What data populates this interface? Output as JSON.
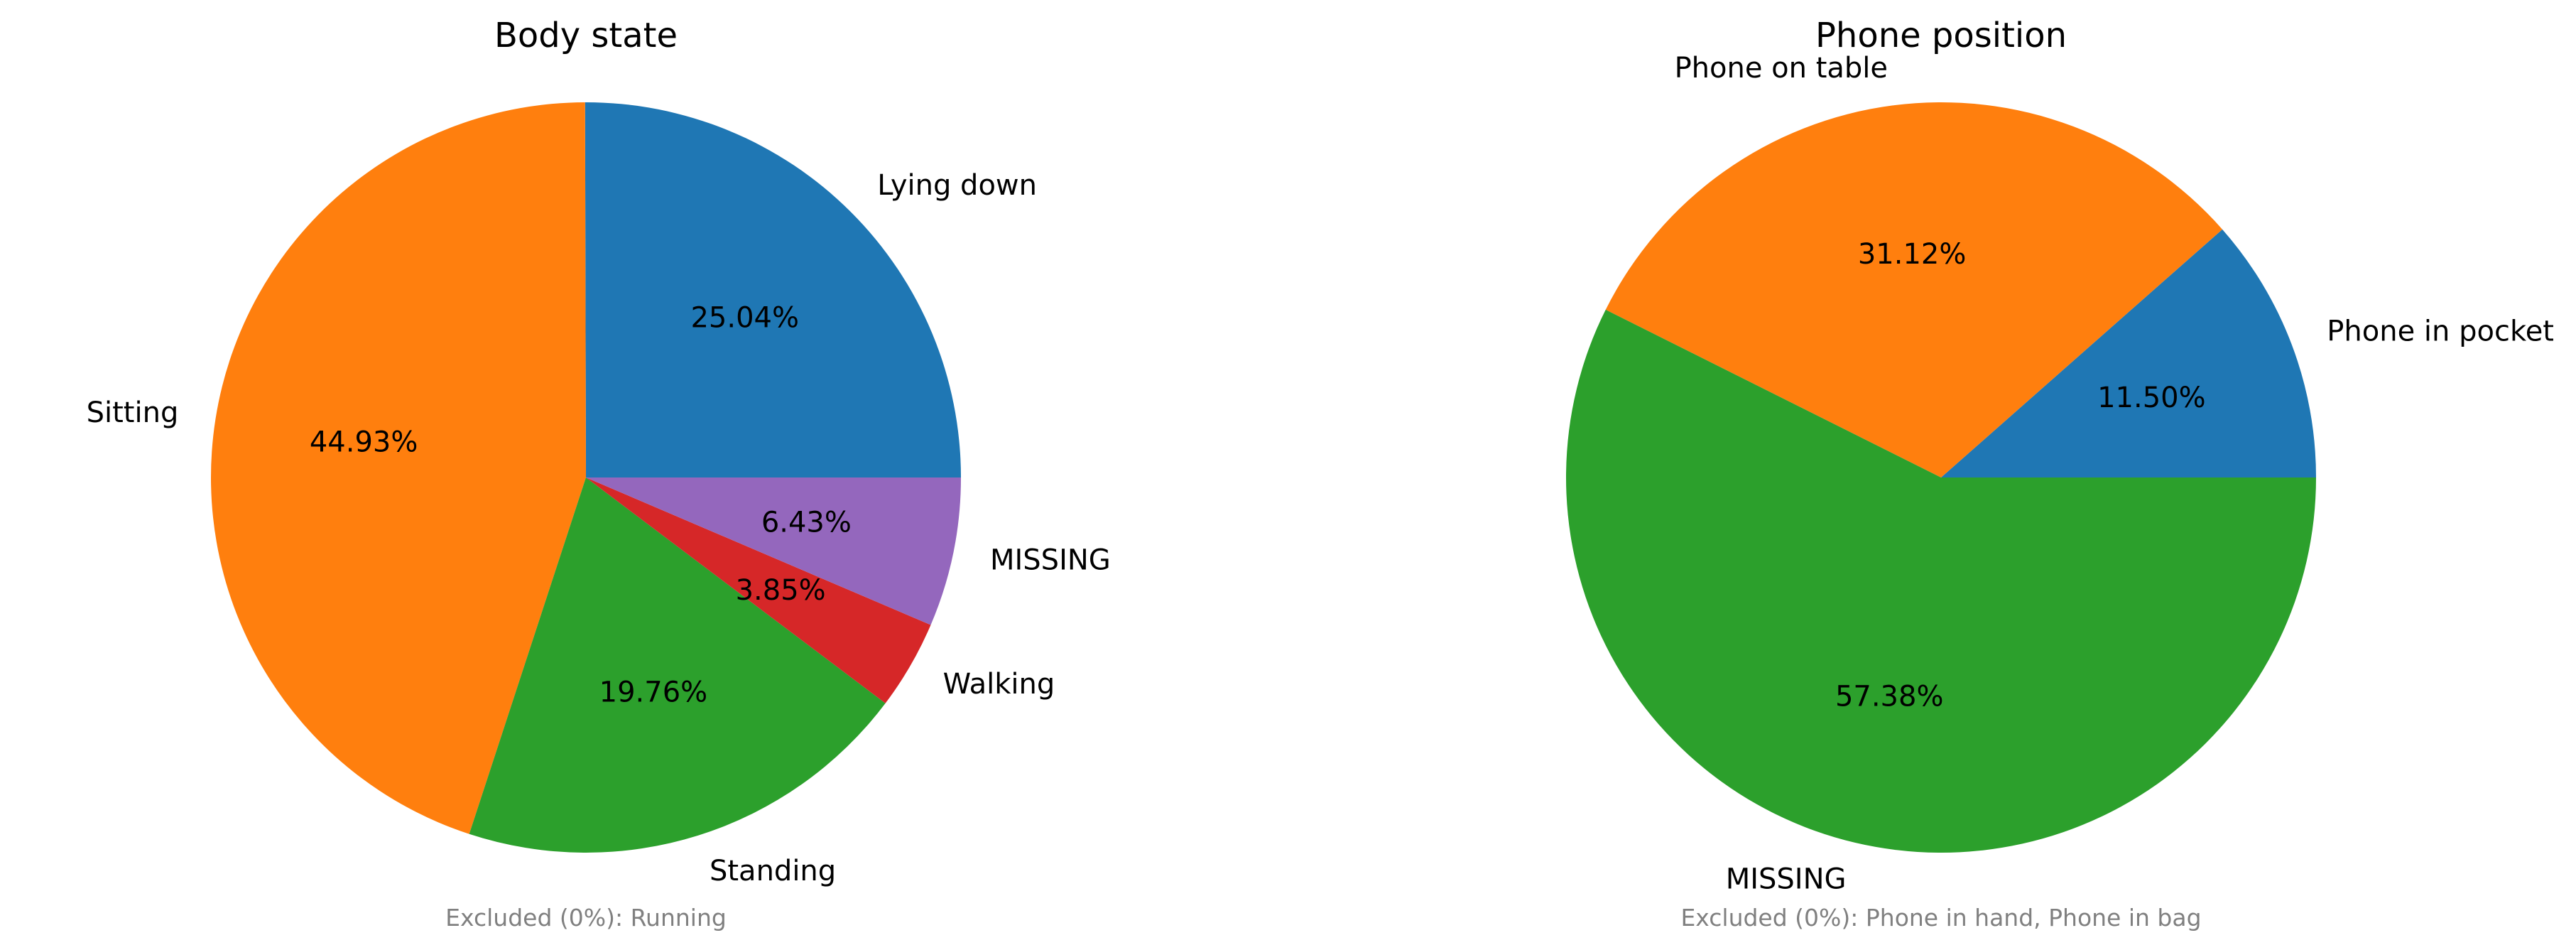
{
  "chart_data": [
    {
      "type": "pie",
      "title": "Body state",
      "start_angle_deg": 0,
      "direction": "counterclockwise",
      "slices": [
        {
          "label": "Lying down",
          "value": 25.04,
          "value_label": "25.04%",
          "color": "#1f77b4"
        },
        {
          "label": "Sitting",
          "value": 44.93,
          "value_label": "44.93%",
          "color": "#ff7f0e"
        },
        {
          "label": "Standing",
          "value": 19.76,
          "value_label": "19.76%",
          "color": "#2ca02c"
        },
        {
          "label": "Walking",
          "value": 3.85,
          "value_label": "3.85%",
          "color": "#d62728"
        },
        {
          "label": "MISSING",
          "value": 6.43,
          "value_label": "6.43%",
          "color": "#9467bd"
        }
      ],
      "note": "Excluded (0%): Running"
    },
    {
      "type": "pie",
      "title": "Phone position",
      "start_angle_deg": 0,
      "direction": "counterclockwise",
      "slices": [
        {
          "label": "Phone in pocket",
          "value": 11.5,
          "value_label": "11.50%",
          "color": "#1f77b4"
        },
        {
          "label": "Phone on table",
          "value": 31.12,
          "value_label": "31.12%",
          "color": "#ff7f0e"
        },
        {
          "label": "MISSING",
          "value": 57.38,
          "value_label": "57.38%",
          "color": "#2ca02c"
        }
      ],
      "note": "Excluded (0%): Phone in hand, Phone in bag"
    }
  ]
}
